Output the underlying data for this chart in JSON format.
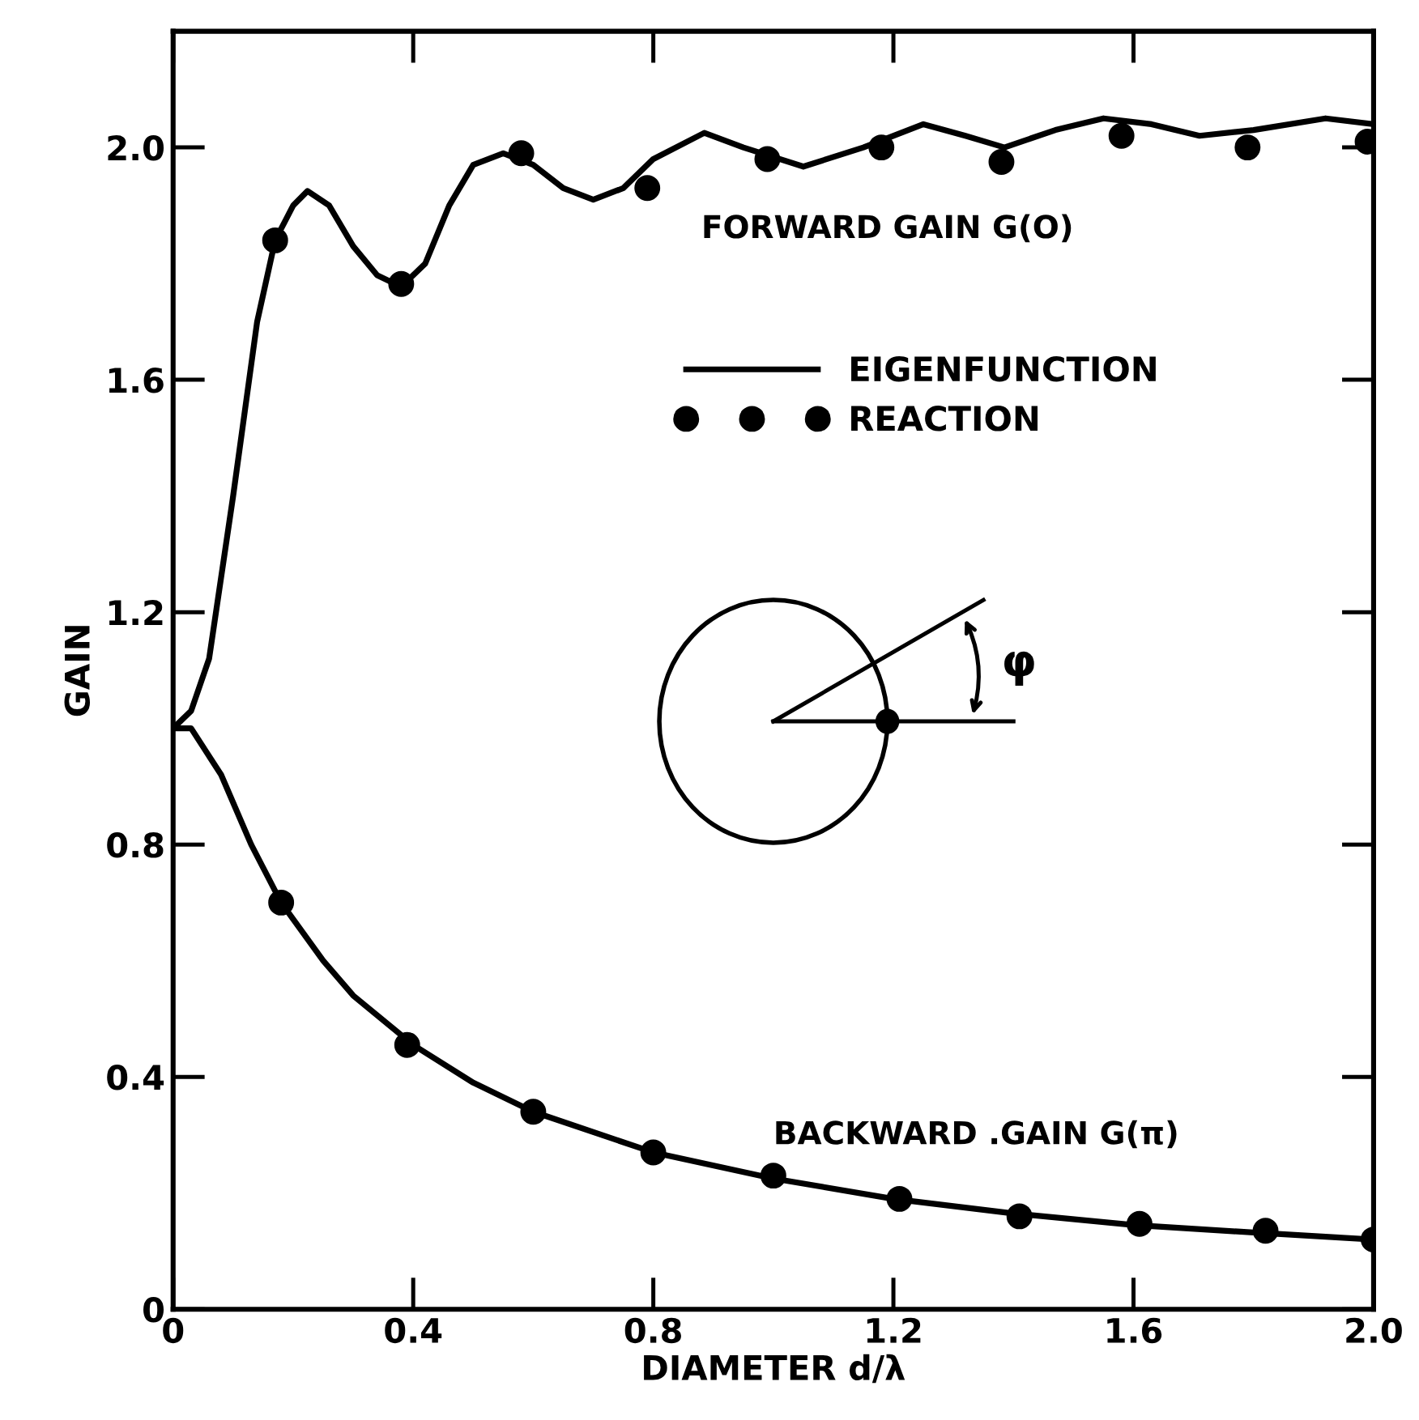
{
  "chart_data": {
    "type": "line",
    "xlabel": "DIAMETER d/λ",
    "ylabel": "GAIN",
    "xlim": [
      0,
      2.0
    ],
    "ylim": [
      0,
      2.2
    ],
    "xticks": [
      0,
      0.4,
      0.8,
      1.2,
      1.6,
      {
        "value": 2,
        "label": "2.0"
      }
    ],
    "yticks": [
      0,
      0.4,
      0.8,
      1.2,
      1.6,
      {
        "value": 2,
        "label": "2.0"
      }
    ],
    "grid": false,
    "legend": "top",
    "line_style": "solid",
    "series": [
      {
        "name": "EIGENFUNCTION",
        "color": "#000000",
        "x": [
          0,
          0.03,
          0.06,
          0.1,
          0.14,
          0.17,
          0.2,
          0.224,
          0.26,
          0.3,
          0.34,
          0.38,
          0.42,
          0.46,
          0.5,
          0.55,
          0.6,
          0.65,
          0.7,
          0.75,
          0.8,
          0.885,
          0.95,
          1.05,
          1.15,
          1.25,
          1.32,
          1.385,
          1.47,
          1.55,
          1.63,
          1.71,
          1.8,
          1.92,
          2.0
        ],
        "values": [
          1.0,
          1.03,
          1.12,
          1.4,
          1.7,
          1.84,
          1.9,
          1.925,
          1.9,
          1.83,
          1.78,
          1.76,
          1.8,
          1.9,
          1.97,
          1.99,
          1.97,
          1.93,
          1.91,
          1.93,
          1.98,
          2.025,
          2.0,
          1.967,
          2.0,
          2.04,
          2.02,
          2.0,
          2.03,
          2.05,
          2.04,
          2.02,
          2.03,
          2.05,
          2.04
        ]
      },
      {
        "name": "REACTION",
        "type": "scatter",
        "color": "#000000",
        "marker": "circle",
        "x": [
          0.17,
          0.38,
          0.58,
          0.79,
          0.99,
          1.18,
          1.38,
          1.58,
          1.79,
          1.99
        ],
        "values": [
          1.84,
          1.765,
          1.99,
          1.93,
          1.98,
          2.0,
          1.975,
          2.02,
          2.0,
          2.01
        ]
      },
      {
        "color": "#000000",
        "x": [
          0,
          0.03,
          0.08,
          0.13,
          0.18,
          0.25,
          0.3,
          0.4,
          0.5,
          0.6,
          0.8,
          1.0,
          1.2,
          1.4,
          1.6,
          1.8,
          2.0
        ],
        "values": [
          1.0,
          1.0,
          0.92,
          0.8,
          0.7,
          0.6,
          0.54,
          0.455,
          0.39,
          0.34,
          0.27,
          0.225,
          0.19,
          0.165,
          0.145,
          0.132,
          0.12
        ]
      },
      {
        "type": "scatter",
        "color": "#000000",
        "marker": "circle",
        "x": [
          0.18,
          0.39,
          0.6,
          0.8,
          1.0,
          1.21,
          1.41,
          1.61,
          1.82,
          2.0
        ],
        "values": [
          0.7,
          0.455,
          0.34,
          0.27,
          0.23,
          0.19,
          0.16,
          0.147,
          0.135,
          0.12
        ]
      }
    ],
    "annotations": [
      "FORWARD GAIN G(O)",
      "BACKWARD .GAIN G(π)",
      "φ"
    ]
  }
}
